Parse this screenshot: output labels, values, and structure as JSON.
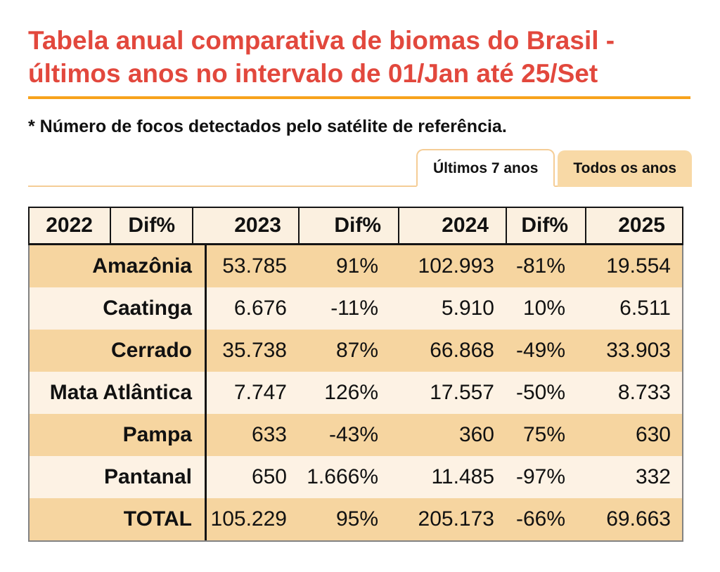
{
  "header": {
    "title_line1": "Tabela anual comparativa de biomas do Brasil -",
    "title_line2": "últimos anos no intervalo de 01/Jan até 25/Set",
    "subtitle": "* Número de focos detectados pelo satélite de referência."
  },
  "tabs": [
    {
      "label": "Últimos 7 anos",
      "active": true
    },
    {
      "label": "Todos os anos",
      "active": false
    }
  ],
  "colors": {
    "title_red": "#e2483d",
    "underline_orange": "#f7a21c",
    "tab_border": "#f5cd96",
    "tab_inactive_bg": "#f8d9a6",
    "row_orange": "#f6d5a0",
    "row_cream": "#fdf2e4",
    "header_row_bg": "#fbf0e0",
    "table_outer_border": "#828282",
    "text_black": "#111111"
  },
  "chart_data": {
    "type": "table",
    "title": "Tabela anual comparativa de biomas do Brasil - últimos anos no intervalo de 01/Jan até 25/Set",
    "note": "* Número de focos detectados pelo satélite de referência.",
    "columns": [
      "2022",
      "Dif%",
      "2023",
      "Dif%",
      "2024",
      "Dif%",
      "2025"
    ],
    "visible_value_columns": [
      "2023",
      "Dif%",
      "2024",
      "Dif%",
      "2025"
    ],
    "rows": [
      {
        "name": "Amazônia",
        "values": [
          "53.785",
          "91%",
          "102.993",
          "-81%",
          "19.554"
        ]
      },
      {
        "name": "Caatinga",
        "values": [
          "6.676",
          "-11%",
          "5.910",
          "10%",
          "6.511"
        ]
      },
      {
        "name": "Cerrado",
        "values": [
          "35.738",
          "87%",
          "66.868",
          "-49%",
          "33.903"
        ]
      },
      {
        "name": "Mata Atlântica",
        "values": [
          "7.747",
          "126%",
          "17.557",
          "-50%",
          "8.733"
        ]
      },
      {
        "name": "Pampa",
        "values": [
          "633",
          "-43%",
          "360",
          "75%",
          "630"
        ]
      },
      {
        "name": "Pantanal",
        "values": [
          "650",
          "1.666%",
          "11.485",
          "-97%",
          "332"
        ]
      },
      {
        "name": "TOTAL",
        "values": [
          "105.229",
          "95%",
          "205.173",
          "-66%",
          "69.663"
        ]
      }
    ]
  }
}
